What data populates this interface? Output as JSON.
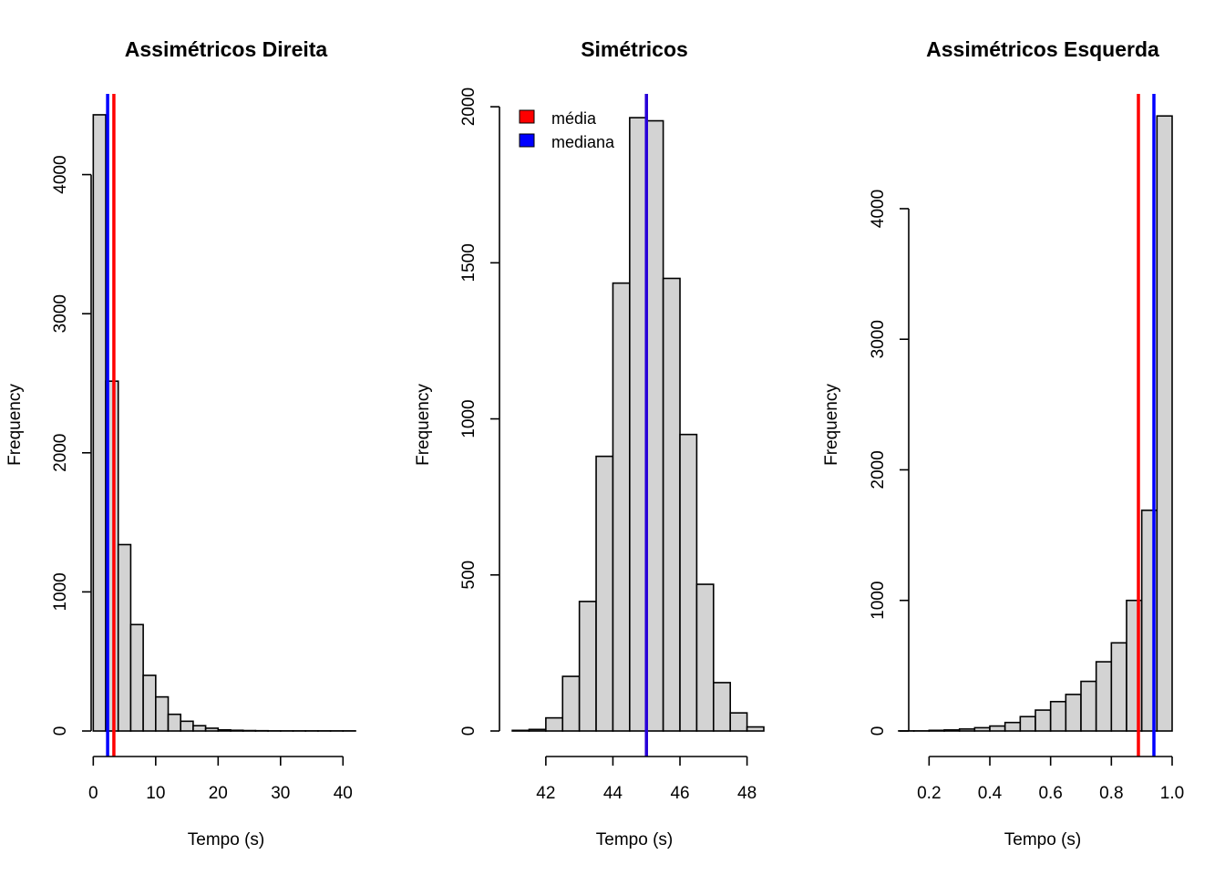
{
  "chart_data": [
    {
      "type": "bar",
      "title": "Assimétricos Direita",
      "xlabel": "Tempo (s)",
      "ylabel": "Frequency",
      "bin_width": 2,
      "bin_edges_start": 0,
      "values": [
        4430,
        2515,
        1340,
        765,
        400,
        245,
        120,
        70,
        38,
        20,
        8,
        5,
        3,
        2,
        1,
        1,
        1,
        1,
        1,
        1,
        1
      ],
      "xlim": [
        -1.8,
        42
      ],
      "ylim": [
        0,
        4600
      ],
      "xticks": [
        "0",
        "10",
        "20",
        "30",
        "40"
      ],
      "xtick_values": [
        0,
        10,
        20,
        30,
        40
      ],
      "yticks": [
        "0",
        "1000",
        "2000",
        "3000",
        "4000"
      ],
      "ytick_values": [
        0,
        1000,
        2000,
        3000,
        4000
      ],
      "mean": 3.3,
      "median": 2.3
    },
    {
      "type": "bar",
      "title": "Simétricos",
      "xlabel": "Tempo (s)",
      "ylabel": "Frequency",
      "bin_width": 0.5,
      "bin_edges_start": 41,
      "values": [
        2,
        5,
        42,
        175,
        415,
        880,
        1435,
        1965,
        1955,
        1450,
        950,
        470,
        155,
        58,
        13
      ],
      "xlim": [
        40.4,
        48.5
      ],
      "ylim": [
        0,
        2050
      ],
      "xticks": [
        "42",
        "44",
        "46",
        "48"
      ],
      "xtick_values": [
        42,
        44,
        46,
        48
      ],
      "yticks": [
        "0",
        "500",
        "1000",
        "1500",
        "2000"
      ],
      "ytick_values": [
        0,
        500,
        1000,
        1500,
        2000
      ],
      "mean": 45,
      "median": 45,
      "legend": {
        "position": "top-left",
        "entries": [
          {
            "label": "média",
            "color": "#ff0000"
          },
          {
            "label": "mediana",
            "color": "#0000ff"
          }
        ]
      }
    },
    {
      "type": "bar",
      "title": "Assimétricos Esquerda",
      "xlabel": "Tempo (s)",
      "ylabel": "Frequency",
      "bin_width": 0.05,
      "bin_edges_start": 0.1,
      "values": [
        1,
        1,
        5,
        8,
        15,
        25,
        38,
        65,
        110,
        160,
        225,
        280,
        380,
        530,
        675,
        1000,
        1690,
        4710
      ],
      "xlim": [
        0.1,
        1.0
      ],
      "ylim": [
        0,
        4900
      ],
      "xticks": [
        "0.2",
        "0.4",
        "0.6",
        "0.8",
        "1.0"
      ],
      "xtick_values": [
        0.2,
        0.4,
        0.6,
        0.8,
        1.0
      ],
      "yticks": [
        "0",
        "1000",
        "2000",
        "3000",
        "4000"
      ],
      "ytick_values": [
        0,
        1000,
        2000,
        3000,
        4000
      ],
      "mean": 0.889,
      "median": 0.94
    }
  ],
  "colors": {
    "bar_fill": "#d3d3d3",
    "bar_stroke": "#000000",
    "mean_line": "#ff0000",
    "median_line": "#0000ff"
  }
}
